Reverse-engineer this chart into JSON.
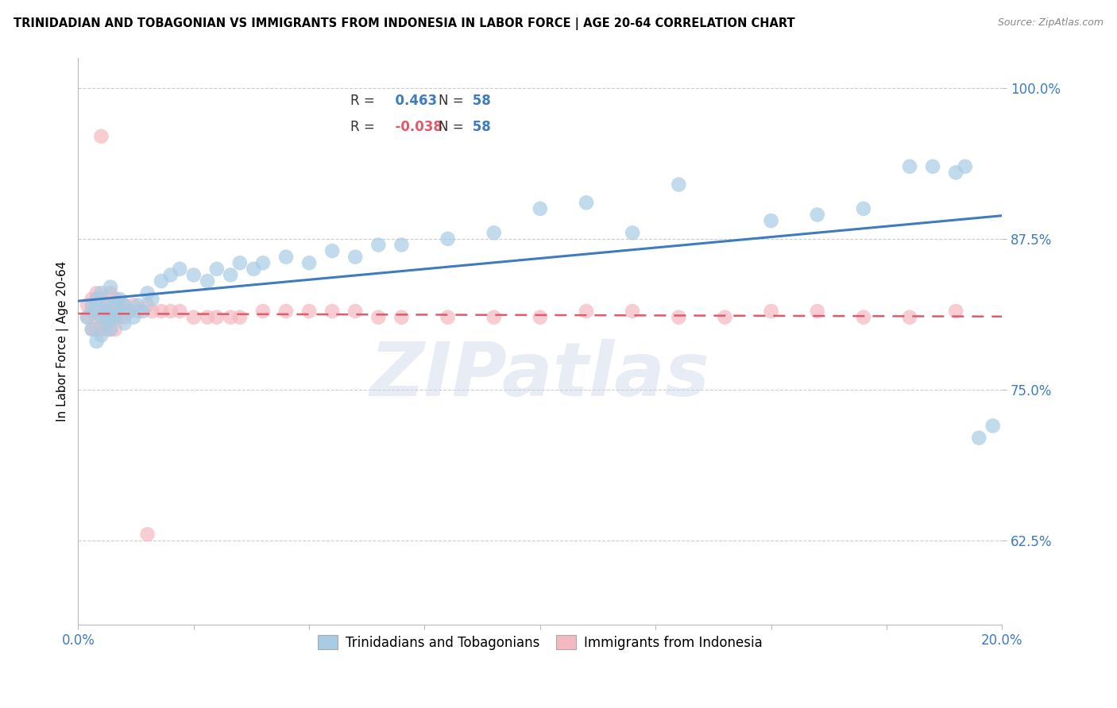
{
  "title": "TRINIDADIAN AND TOBAGONIAN VS IMMIGRANTS FROM INDONESIA IN LABOR FORCE | AGE 20-64 CORRELATION CHART",
  "source": "Source: ZipAtlas.com",
  "ylabel": "In Labor Force | Age 20-64",
  "xlim": [
    0.0,
    0.2
  ],
  "ylim": [
    0.555,
    1.025
  ],
  "yticks": [
    0.625,
    0.75,
    0.875,
    1.0
  ],
  "ytick_labels": [
    "62.5%",
    "75.0%",
    "87.5%",
    "100.0%"
  ],
  "xticks": [
    0.0,
    0.025,
    0.05,
    0.075,
    0.1,
    0.125,
    0.15,
    0.175,
    0.2
  ],
  "blue_R": 0.463,
  "pink_R": -0.038,
  "N": 58,
  "blue_color": "#a8cce4",
  "pink_color": "#f4b8c1",
  "blue_line_color": "#3e7bbf",
  "pink_line_color": "#e05a6a",
  "watermark": "ZIPatlas",
  "blue_x": [
    0.002,
    0.003,
    0.003,
    0.004,
    0.004,
    0.004,
    0.005,
    0.005,
    0.005,
    0.006,
    0.006,
    0.006,
    0.007,
    0.007,
    0.007,
    0.008,
    0.008,
    0.009,
    0.009,
    0.01,
    0.01,
    0.011,
    0.012,
    0.013,
    0.014,
    0.015,
    0.016,
    0.018,
    0.02,
    0.022,
    0.025,
    0.028,
    0.03,
    0.033,
    0.035,
    0.038,
    0.04,
    0.045,
    0.05,
    0.055,
    0.06,
    0.065,
    0.07,
    0.08,
    0.09,
    0.1,
    0.11,
    0.12,
    0.13,
    0.15,
    0.16,
    0.17,
    0.18,
    0.185,
    0.19,
    0.192,
    0.195,
    0.198
  ],
  "blue_y": [
    0.81,
    0.82,
    0.8,
    0.825,
    0.815,
    0.79,
    0.83,
    0.81,
    0.795,
    0.82,
    0.805,
    0.815,
    0.835,
    0.81,
    0.8,
    0.82,
    0.81,
    0.825,
    0.815,
    0.805,
    0.82,
    0.815,
    0.81,
    0.82,
    0.815,
    0.83,
    0.825,
    0.84,
    0.845,
    0.85,
    0.845,
    0.84,
    0.85,
    0.845,
    0.855,
    0.85,
    0.855,
    0.86,
    0.855,
    0.865,
    0.86,
    0.87,
    0.87,
    0.875,
    0.88,
    0.9,
    0.905,
    0.88,
    0.92,
    0.89,
    0.895,
    0.9,
    0.935,
    0.935,
    0.93,
    0.935,
    0.71,
    0.72
  ],
  "pink_x": [
    0.002,
    0.002,
    0.003,
    0.003,
    0.003,
    0.004,
    0.004,
    0.004,
    0.005,
    0.005,
    0.005,
    0.006,
    0.006,
    0.006,
    0.007,
    0.007,
    0.007,
    0.008,
    0.008,
    0.008,
    0.009,
    0.009,
    0.01,
    0.01,
    0.011,
    0.012,
    0.013,
    0.015,
    0.016,
    0.018,
    0.02,
    0.022,
    0.025,
    0.028,
    0.03,
    0.033,
    0.035,
    0.04,
    0.045,
    0.05,
    0.055,
    0.06,
    0.065,
    0.07,
    0.08,
    0.09,
    0.1,
    0.11,
    0.12,
    0.13,
    0.14,
    0.15,
    0.16,
    0.17,
    0.18,
    0.19,
    0.005,
    0.015
  ],
  "pink_y": [
    0.82,
    0.81,
    0.825,
    0.815,
    0.8,
    0.83,
    0.81,
    0.8,
    0.825,
    0.81,
    0.8,
    0.82,
    0.81,
    0.8,
    0.83,
    0.815,
    0.8,
    0.825,
    0.81,
    0.8,
    0.82,
    0.81,
    0.82,
    0.81,
    0.815,
    0.82,
    0.815,
    0.82,
    0.815,
    0.815,
    0.815,
    0.815,
    0.81,
    0.81,
    0.81,
    0.81,
    0.81,
    0.815,
    0.815,
    0.815,
    0.815,
    0.815,
    0.81,
    0.81,
    0.81,
    0.81,
    0.81,
    0.815,
    0.815,
    0.81,
    0.81,
    0.815,
    0.815,
    0.81,
    0.81,
    0.815,
    0.96,
    0.63
  ]
}
